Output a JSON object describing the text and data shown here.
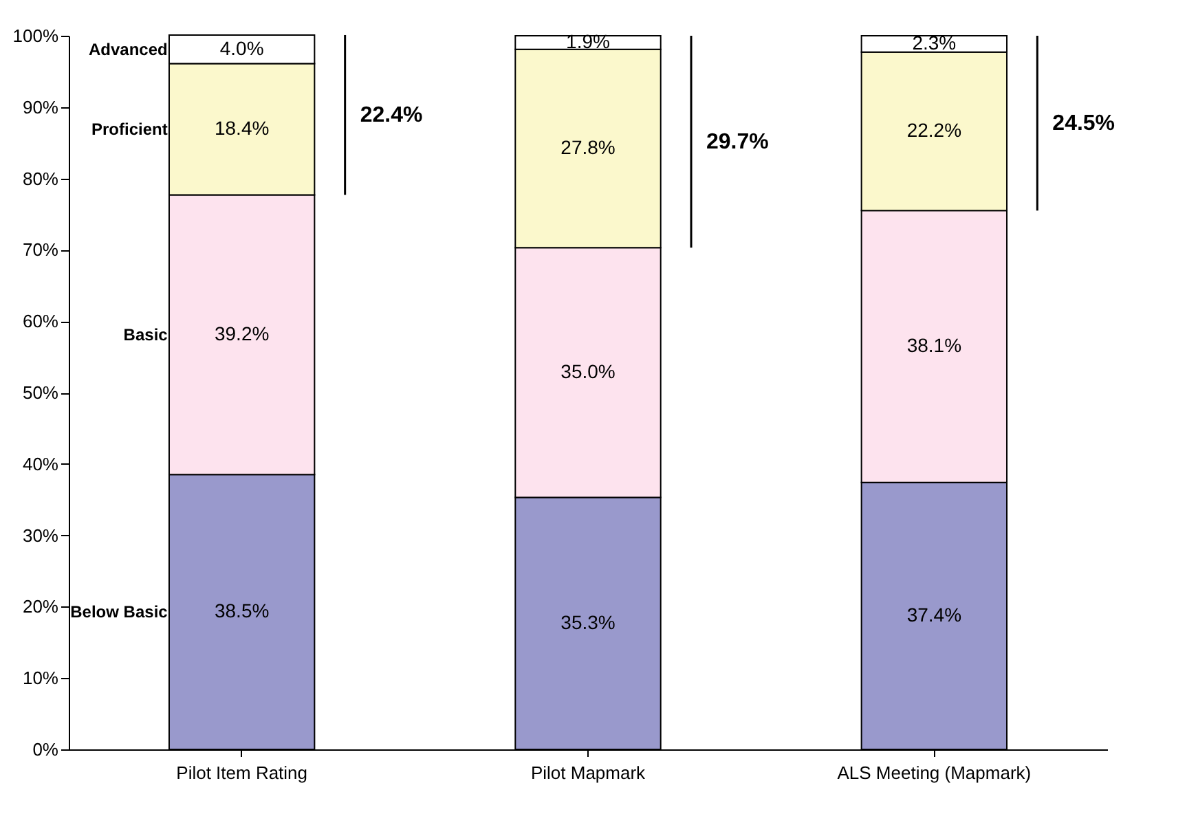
{
  "chart_data": {
    "type": "bar",
    "stacked": true,
    "categories": [
      "Pilot Item Rating",
      "Pilot Mapmark",
      "ALS Meeting (Mapmark)"
    ],
    "series": [
      {
        "name": "Below Basic",
        "color": "#9999cc",
        "values": [
          38.5,
          35.3,
          37.4
        ],
        "value_labels": [
          "38.5%",
          "35.3%",
          "37.4%"
        ]
      },
      {
        "name": "Basic",
        "color": "#fde3ee",
        "values": [
          39.2,
          35.0,
          38.1
        ],
        "value_labels": [
          "39.2%",
          "35.0%",
          "38.1%"
        ]
      },
      {
        "name": "Proficient",
        "color": "#fbf8cc",
        "values": [
          18.4,
          27.8,
          22.2
        ],
        "value_labels": [
          "18.4%",
          "27.8%",
          "22.2%"
        ]
      },
      {
        "name": "Advanced",
        "color": "#ffffff",
        "values": [
          4.0,
          1.9,
          2.3
        ],
        "value_labels": [
          "4.0%",
          "1.9%",
          "2.3%"
        ]
      }
    ],
    "ylim": [
      0,
      100
    ],
    "yticks": [
      {
        "value": 0,
        "label": "0%"
      },
      {
        "value": 10,
        "label": "10%"
      },
      {
        "value": 20,
        "label": "20%"
      },
      {
        "value": 30,
        "label": "30%"
      },
      {
        "value": 40,
        "label": "40%"
      },
      {
        "value": 50,
        "label": "50%"
      },
      {
        "value": 60,
        "label": "60%"
      },
      {
        "value": 70,
        "label": "70%"
      },
      {
        "value": 80,
        "label": "80%"
      },
      {
        "value": 90,
        "label": "90%"
      },
      {
        "value": 100,
        "label": "100%"
      }
    ],
    "annotations": [
      "22.4%",
      "29.7%",
      "24.5%"
    ],
    "grid": false,
    "legend": false
  }
}
